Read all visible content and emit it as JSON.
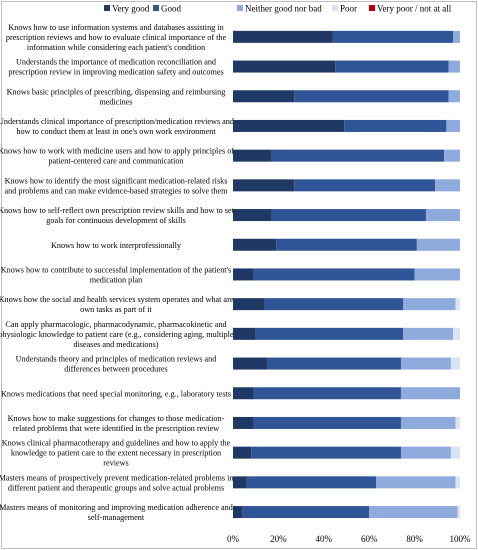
{
  "chart_data": {
    "type": "bar",
    "orientation": "horizontal",
    "stacked": true,
    "percent": true,
    "xlim": [
      0,
      100
    ],
    "x_ticks": [
      "0%",
      "20%",
      "40%",
      "60%",
      "80%",
      "100%"
    ],
    "grid": false,
    "legend_position": "top",
    "legend": [
      {
        "name": "Very good",
        "color": "#1f3864"
      },
      {
        "name": "Good",
        "color": "#2f5597"
      },
      {
        "name": "Neither good nor bad",
        "color": "#8faadc"
      },
      {
        "name": "Poor",
        "color": "#dae3f3"
      },
      {
        "name": "Very poor / not at all",
        "color": "#c00000"
      }
    ],
    "categories": [
      [
        "Knows how to use information systems and databases assisting in",
        "prescription reviews and how to evaluate clinical importance of the",
        "information while considering each patient's condition"
      ],
      [
        "Understands the importance of medication reconciliation and",
        "prescription review in improving medication safety and outcomes"
      ],
      [
        "Knows basic principles of prescribing, dispensing and reimbursing",
        "medicines"
      ],
      [
        "Understands clinical importance of prescription/medication reviews and",
        "how to conduct them at least in one's own work environment"
      ],
      [
        "Knows how to work with medicine users and how to apply principles of",
        "patient-centered care and communication"
      ],
      [
        "Knows how to identify the most significant medication-related risks",
        "and problems and can make evidence-based strategies to solve them"
      ],
      [
        "Knows how to self-reflect own prescription review skills and how to set",
        "goals for continuous development of skills"
      ],
      [
        "Knows how to work interprofessionally"
      ],
      [
        "Knows how to contribute to successful implementation of the patient's",
        "medication plan"
      ],
      [
        "Knows how the social and health services system operates and what are",
        "own tasks as part of it"
      ],
      [
        "Can apply pharmacologic, pharmacodynamic, pharmacokinetic and",
        "physiologic knowledge to patient care (e.g., considering aging, multiple",
        "diseases and medications)"
      ],
      [
        "Understands theory and principles of medication reviews and",
        "differences between procedures"
      ],
      [
        "Knows medications that need special monitoring, e.g., laboratory tests"
      ],
      [
        "Knows how to make suggestions for changes to those medication-",
        "related problems that were identified in the prescription review"
      ],
      [
        "Knows clinical pharmacotherapy and guidelines and how to apply the",
        "knowledge to patient care to the extent necessary in prescription",
        "reviews"
      ],
      [
        "Masters means of prospectively prevent medication-related problems in",
        "different patient and therapeutic groups and solve actual problems"
      ],
      [
        "Masters means of monitoring and improving medication adherence and",
        "self-management"
      ]
    ],
    "series": [
      {
        "name": "Very good",
        "values": [
          44,
          45,
          27,
          49,
          17,
          27,
          17,
          19,
          9,
          14,
          10,
          15,
          9,
          9,
          8,
          6,
          4
        ]
      },
      {
        "name": "Good",
        "values": [
          53,
          50,
          68,
          45,
          76,
          62,
          68,
          62,
          71,
          61,
          65,
          59,
          65,
          65,
          66,
          57,
          56
        ]
      },
      {
        "name": "Neither good nor bad",
        "values": [
          3,
          5,
          5,
          6,
          7,
          11,
          15,
          19,
          20,
          23,
          22,
          22,
          26,
          24,
          22,
          35,
          39
        ]
      },
      {
        "name": "Poor",
        "values": [
          0,
          0,
          0,
          0,
          0,
          0,
          0,
          0,
          0,
          2,
          3,
          4,
          0,
          2,
          4,
          2,
          1
        ]
      },
      {
        "name": "Very poor / not at all",
        "values": [
          0,
          0,
          0,
          0,
          0,
          0,
          0,
          0,
          0,
          0,
          0,
          0,
          0,
          0,
          0,
          0,
          0
        ]
      }
    ]
  }
}
